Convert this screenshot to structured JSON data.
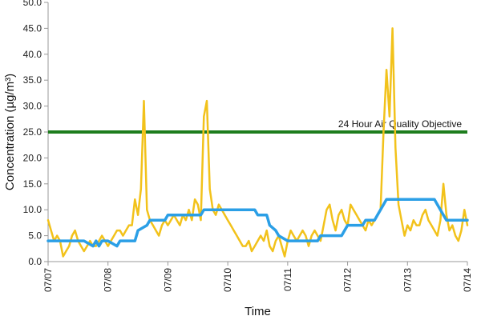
{
  "chart_data": {
    "type": "line",
    "title": "",
    "xlabel": "Time",
    "ylabel": "Concentration (µg/m³)",
    "ylim": [
      0,
      50
    ],
    "yticks": [
      "0.0",
      "5.0",
      "10.0",
      "15.0",
      "20.0",
      "25.0",
      "30.0",
      "35.0",
      "40.0",
      "45.0",
      "50.0"
    ],
    "xlim": [
      0,
      7
    ],
    "xticks": [
      "07/07",
      "07/08",
      "07/09",
      "07/10",
      "07/11",
      "07/12",
      "07/13",
      "07/14"
    ],
    "grid": false,
    "legend": "none",
    "reference_line": {
      "value": 25,
      "label": "24 Hour Air Quality Objective",
      "color": "#1e7d1e"
    },
    "series": [
      {
        "color": "#f2c21b",
        "style": "hourly",
        "x": [
          0.0,
          0.05,
          0.1,
          0.15,
          0.2,
          0.25,
          0.3,
          0.35,
          0.4,
          0.45,
          0.5,
          0.55,
          0.6,
          0.65,
          0.7,
          0.75,
          0.8,
          0.85,
          0.9,
          0.95,
          1.0,
          1.05,
          1.1,
          1.15,
          1.2,
          1.25,
          1.3,
          1.35,
          1.4,
          1.45,
          1.5,
          1.55,
          1.6,
          1.65,
          1.7,
          1.75,
          1.8,
          1.85,
          1.9,
          1.95,
          2.0,
          2.05,
          2.1,
          2.15,
          2.2,
          2.25,
          2.3,
          2.35,
          2.4,
          2.45,
          2.5,
          2.55,
          2.6,
          2.65,
          2.7,
          2.75,
          2.8,
          2.85,
          2.9,
          2.95,
          3.0,
          3.05,
          3.1,
          3.15,
          3.2,
          3.25,
          3.3,
          3.35,
          3.4,
          3.45,
          3.5,
          3.55,
          3.6,
          3.65,
          3.7,
          3.75,
          3.8,
          3.85,
          3.9,
          3.95,
          4.0,
          4.05,
          4.1,
          4.15,
          4.2,
          4.25,
          4.3,
          4.35,
          4.4,
          4.45,
          4.5,
          4.55,
          4.6,
          4.65,
          4.7,
          4.75,
          4.8,
          4.85,
          4.9,
          4.95,
          5.0,
          5.05,
          5.1,
          5.15,
          5.2,
          5.25,
          5.3,
          5.35,
          5.4,
          5.45,
          5.5,
          5.55,
          5.6,
          5.65,
          5.7,
          5.75,
          5.8,
          5.85,
          5.9,
          5.95,
          6.0,
          6.05,
          6.1,
          6.15,
          6.2,
          6.25,
          6.3,
          6.35,
          6.4,
          6.45,
          6.5,
          6.55,
          6.6,
          6.65,
          6.7,
          6.75,
          6.8,
          6.85,
          6.9,
          6.95,
          7.0
        ],
        "y": [
          8,
          6,
          4,
          5,
          4,
          1,
          2,
          3,
          5,
          6,
          4,
          3,
          2,
          3,
          4,
          3,
          3,
          4,
          5,
          4,
          3,
          4,
          5,
          6,
          6,
          5,
          6,
          7,
          7,
          12,
          9,
          14,
          31,
          10,
          8,
          7,
          6,
          5,
          7,
          8,
          7,
          8,
          9,
          8,
          7,
          9,
          8,
          10,
          8,
          12,
          11,
          8,
          28,
          31,
          14,
          10,
          9,
          11,
          10,
          9,
          8,
          7,
          6,
          5,
          4,
          3,
          3,
          4,
          2,
          3,
          4,
          5,
          4,
          6,
          3,
          2,
          4,
          5,
          3,
          1,
          4,
          6,
          5,
          4,
          5,
          6,
          5,
          3,
          5,
          6,
          5,
          4,
          7,
          10,
          11,
          8,
          6,
          9,
          10,
          8,
          7,
          11,
          10,
          9,
          8,
          7,
          6,
          8,
          7,
          8,
          9,
          10,
          25,
          37,
          28,
          45,
          22,
          11,
          8,
          5,
          7,
          6,
          8,
          7,
          7,
          9,
          10,
          8,
          7,
          6,
          5,
          8,
          15,
          9,
          6,
          7,
          5,
          4,
          6,
          10,
          7
        ]
      },
      {
        "color": "#2b9fe6",
        "style": "rolling-24h",
        "x": [
          0.0,
          0.5,
          0.6,
          0.75,
          0.8,
          0.85,
          0.9,
          1.0,
          1.15,
          1.2,
          1.45,
          1.5,
          1.65,
          1.7,
          1.95,
          2.0,
          2.5,
          2.55,
          2.6,
          3.0,
          3.05,
          3.45,
          3.5,
          3.65,
          3.7,
          3.8,
          3.85,
          4.0,
          4.5,
          4.55,
          4.9,
          4.95,
          5.0,
          5.25,
          5.3,
          5.45,
          5.5,
          5.6,
          5.65,
          6.45,
          6.5,
          6.6,
          6.65,
          7.0
        ],
        "y": [
          4,
          4,
          4,
          3,
          4,
          3,
          4,
          4,
          3,
          4,
          4,
          6,
          7,
          8,
          8,
          9,
          9,
          9,
          10,
          10,
          10,
          10,
          9,
          9,
          7,
          6,
          5,
          4,
          4,
          5,
          5,
          6,
          7,
          7,
          8,
          8,
          9,
          11,
          12,
          12,
          11,
          9,
          8,
          8
        ]
      }
    ]
  }
}
